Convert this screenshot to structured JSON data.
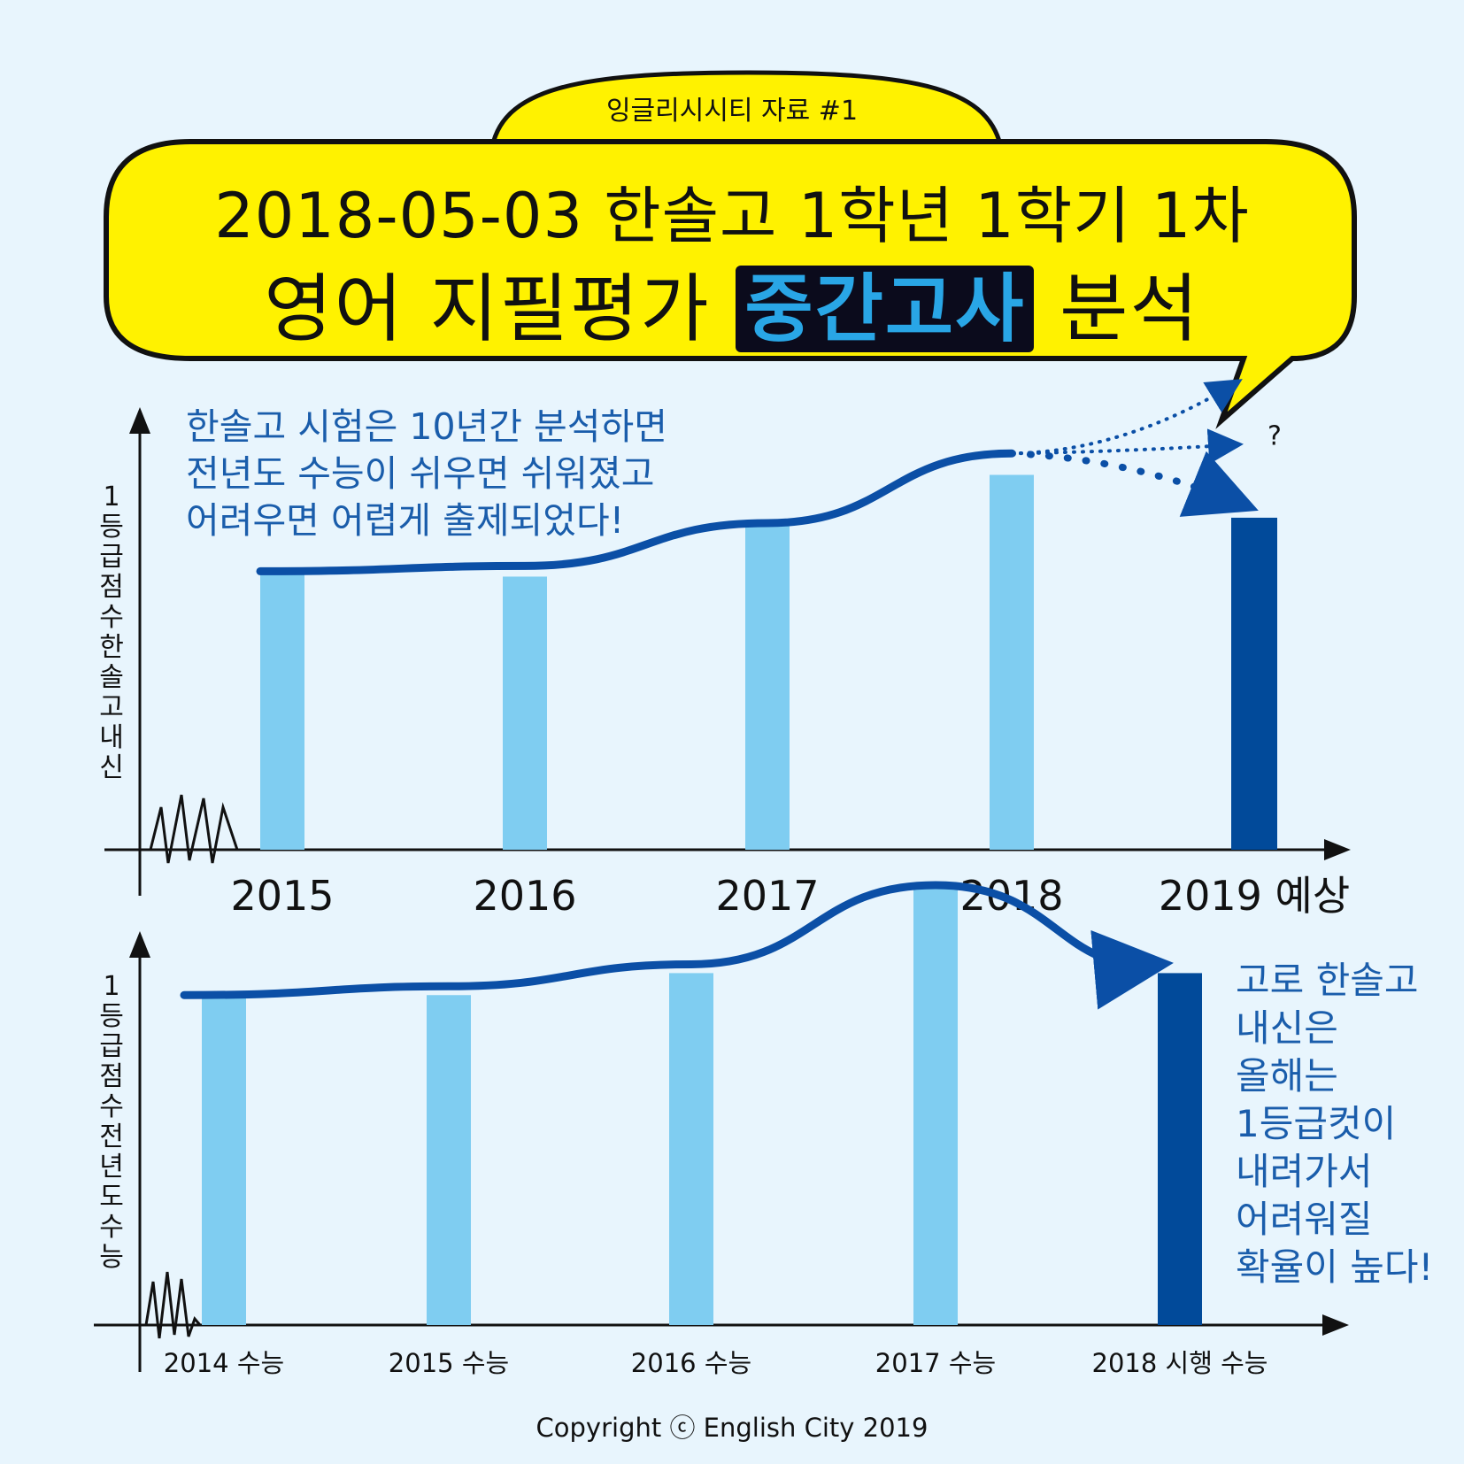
{
  "header": {
    "source_label": "잉글리시시티 자료 #1",
    "title_line1": "2018-05-03 한솔고 1학년 1학기 1차",
    "title_line2_prefix": "영어 지필평가",
    "title_line2_highlight": "중간고사",
    "title_line2_suffix": "분석"
  },
  "chart_data": [
    {
      "type": "bar",
      "ylabel": "1등급점수 한솔고내신",
      "categories": [
        "2015",
        "2016",
        "2017",
        "2018",
        "2019 예상"
      ],
      "values": [
        52,
        51,
        61,
        70,
        62
      ],
      "trend": [
        52,
        53,
        61,
        74
      ],
      "projection_marker": "?",
      "annotation": "한솔고 시험은 10년간 분석하면\n전년도 수능이 쉬우면 쉬워졌고\n어려우면 어렵게 출제되었다!",
      "colors": {
        "bar": "#7fcdf1",
        "highlight_bar": "#014a9a",
        "trend": "#0b4fa6"
      }
    },
    {
      "type": "bar",
      "ylabel": "1등급점수 전년도수능",
      "categories": [
        "2014 수능",
        "2015 수능",
        "2016 수능",
        "2017 수능",
        "2018 시행 수능"
      ],
      "values": [
        75,
        75,
        80,
        100,
        80
      ],
      "trend": [
        75,
        77,
        82,
        100,
        80
      ],
      "annotation": "고로 한솔고\n내신은\n올해는\n1등급컷이\n내려가서\n어려워질\n확율이 높다!",
      "colors": {
        "bar": "#7fcdf1",
        "highlight_bar": "#014a9a",
        "trend": "#0b4fa6"
      }
    }
  ],
  "footer": {
    "copyright": "Copyright ⓒ English City 2019"
  },
  "colors": {
    "background": "#e8f5fd",
    "bubble": "#fff200",
    "accent": "#29a6e6"
  }
}
